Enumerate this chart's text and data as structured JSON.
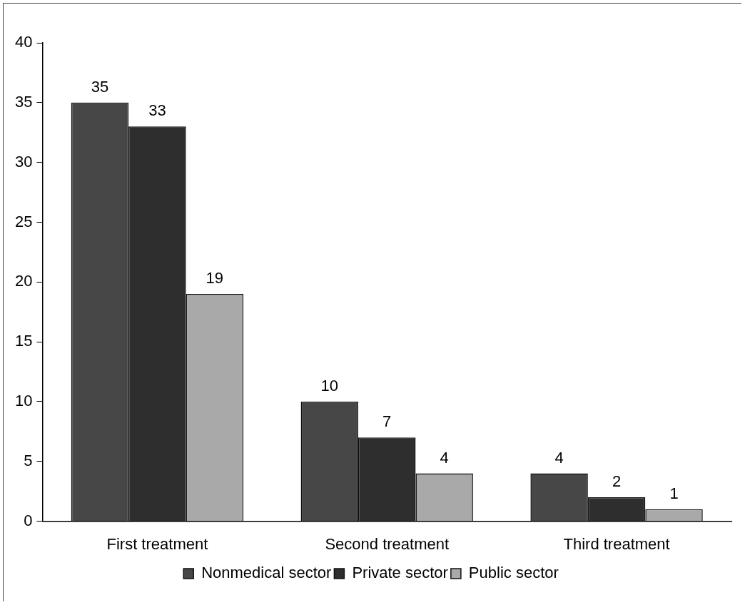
{
  "chart_data": {
    "type": "bar",
    "categories": [
      "First treatment",
      "Second treatment",
      "Third treatment"
    ],
    "series": [
      {
        "name": "Nonmedical sector",
        "color": "#474747",
        "values": [
          35,
          10,
          4
        ]
      },
      {
        "name": "Private sector",
        "color": "#2e2e2e",
        "values": [
          33,
          7,
          2
        ]
      },
      {
        "name": "Public sector",
        "color": "#a9a9a9",
        "values": [
          19,
          4,
          1
        ]
      }
    ],
    "ylim": [
      0,
      40
    ],
    "yticks": [
      0,
      5,
      10,
      15,
      20,
      25,
      30,
      35,
      40
    ],
    "grid": false,
    "legend": "bottom",
    "data_labels": true
  }
}
